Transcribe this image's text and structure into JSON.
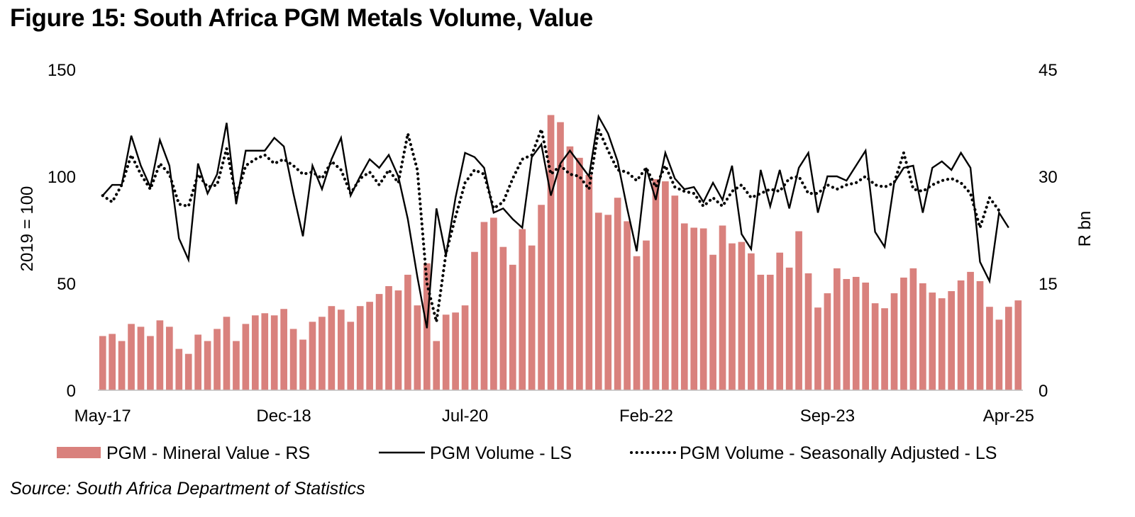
{
  "title": "Figure 15: South Africa PGM Metals Volume, Value",
  "source": "Source: South Africa Department of Statistics",
  "colors": {
    "bar": "#d9817d",
    "line": "#000000"
  },
  "chart_data": {
    "type": "bar+line",
    "x_tick_labels": [
      "May-17",
      "Dec-18",
      "Jul-20",
      "Feb-22",
      "Sep-23",
      "Apr-25"
    ],
    "x_tick_indices": [
      0,
      19,
      38,
      57,
      76,
      95
    ],
    "y_left": {
      "label": "2019 = 100",
      "min": 0,
      "max": 150,
      "ticks": [
        "0",
        "50",
        "100",
        "150"
      ]
    },
    "y_right": {
      "label": "R bn",
      "min": 0,
      "max": 45,
      "ticks": [
        "0",
        "15",
        "30",
        "45"
      ]
    },
    "legend": [
      "PGM - Mineral Value - RS",
      "PGM Volume - LS",
      "PGM Volume - Seasonally Adjusted - LS"
    ],
    "series": [
      {
        "name": "PGM - Mineral Value - RS",
        "axis": "right",
        "type": "bar",
        "values": [
          7.6,
          7.9,
          6.9,
          9.3,
          8.9,
          7.6,
          9.8,
          8.9,
          5.8,
          5.1,
          7.8,
          6.9,
          8.6,
          10.3,
          6.9,
          9.3,
          10.5,
          10.8,
          10.5,
          11.4,
          8.6,
          7.1,
          9.6,
          10.3,
          11.8,
          11.3,
          9.6,
          11.8,
          12.4,
          13.5,
          14.6,
          14.0,
          16.2,
          11.9,
          17.8,
          6.9,
          10.6,
          10.9,
          11.9,
          19.4,
          23.6,
          24.2,
          20.1,
          17.6,
          22.6,
          20.3,
          26.0,
          38.6,
          37.6,
          34.2,
          32.6,
          30.2,
          24.9,
          24.6,
          27.0,
          23.7,
          18.8,
          21.0,
          29.6,
          29.3,
          27.3,
          23.4,
          22.8,
          22.7,
          19.0,
          23.1,
          20.6,
          20.8,
          19.2,
          16.2,
          16.2,
          19.3,
          17.2,
          22.3,
          16.4,
          11.6,
          13.6,
          17.1,
          15.6,
          15.9,
          15.1,
          12.2,
          11.5,
          13.6,
          15.8,
          17.1,
          15.0,
          13.7,
          12.9,
          13.9,
          15.4,
          16.6,
          15.3,
          11.7,
          9.9,
          11.7,
          12.6
        ]
      },
      {
        "name": "PGM Volume - LS",
        "axis": "left",
        "type": "line",
        "values": [
          91,
          96,
          96,
          119,
          105,
          95,
          117,
          105,
          71,
          61,
          106,
          92,
          101,
          125,
          87,
          112,
          112,
          112,
          118,
          114,
          92,
          72,
          105,
          94,
          108,
          118,
          91,
          100,
          108,
          104,
          110,
          100,
          80,
          53,
          29,
          85,
          63,
          90,
          111,
          109,
          104,
          83,
          85,
          80,
          76,
          109,
          115,
          91,
          106,
          112,
          106,
          100,
          128,
          120,
          107,
          85,
          65,
          104,
          89,
          111,
          99,
          94,
          95,
          88,
          97,
          89,
          105,
          73,
          66,
          103,
          86,
          103,
          85,
          104,
          111,
          83,
          100,
          100,
          98,
          105,
          112,
          74,
          67,
          97,
          104,
          105,
          83,
          104,
          107,
          103,
          111,
          104,
          60,
          51,
          83,
          76
        ]
      },
      {
        "name": "PGM Volume - Seasonally Adjusted - LS",
        "axis": "left",
        "type": "line",
        "values": [
          91,
          88,
          96,
          110,
          101,
          94,
          106,
          101,
          87,
          86,
          101,
          95,
          96,
          113,
          90,
          105,
          108,
          110,
          106,
          108,
          105,
          101,
          102,
          99,
          107,
          103,
          92,
          99,
          102,
          96,
          103,
          97,
          120,
          103,
          50,
          32,
          64,
          81,
          97,
          103,
          101,
          85,
          88,
          99,
          108,
          110,
          122,
          101,
          105,
          101,
          100,
          94,
          122,
          112,
          103,
          102,
          98,
          104,
          95,
          105,
          95,
          93,
          92,
          86,
          90,
          86,
          93,
          96,
          90,
          92,
          94,
          93,
          99,
          100,
          92,
          92,
          96,
          94,
          96,
          97,
          100,
          96,
          95,
          97,
          111,
          94,
          93,
          96,
          98,
          99,
          97,
          92,
          76,
          90,
          84
        ]
      }
    ]
  }
}
